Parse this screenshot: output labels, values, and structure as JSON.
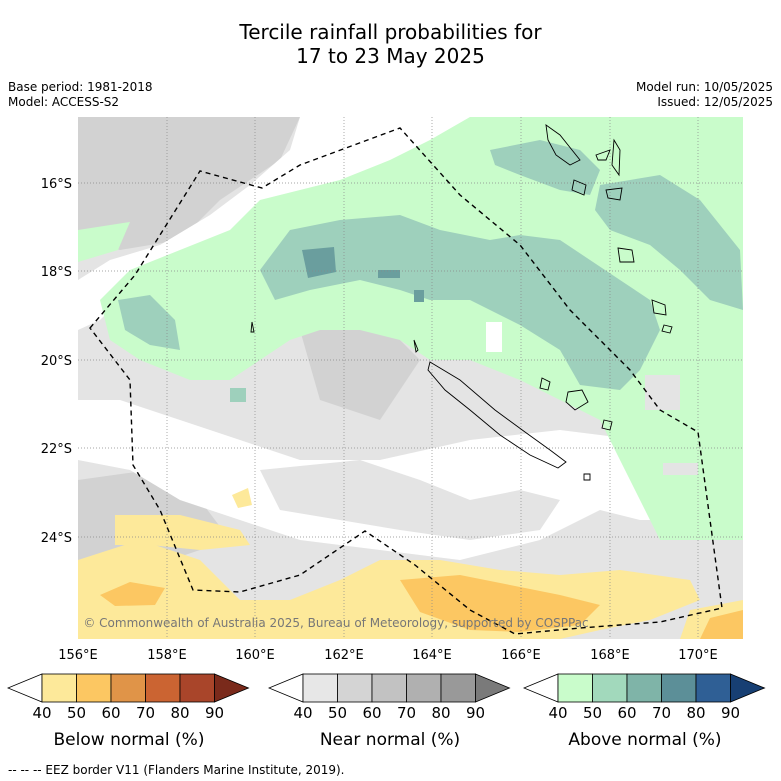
{
  "title_line1": "Tercile rainfall probabilities for",
  "title_line2": "17 to 23 May 2025",
  "base_period": "Base period: 1981-2018",
  "model": "Model: ACCESS-S2",
  "model_run": "Model run: 10/05/2025",
  "issued": "Issued: 12/05/2025",
  "copyright": "© Commonwealth of Australia 2025, Bureau of Meteorology, supported by COSPPac",
  "lon_labels": [
    "156°E",
    "158°E",
    "160°E",
    "162°E",
    "164°E",
    "166°E",
    "168°E",
    "170°E"
  ],
  "lat_labels": [
    "16°S",
    "18°S",
    "20°S",
    "22°S",
    "24°S"
  ],
  "legends": [
    {
      "label": "Below normal (%)",
      "ticks": [
        "40",
        "50",
        "60",
        "70",
        "80",
        "90"
      ],
      "colors": [
        "#ffffff",
        "#fde99a",
        "#fcc762",
        "#e09448",
        "#cb6432",
        "#a9452a",
        "#7a2a1b"
      ]
    },
    {
      "label": "Near normal (%)",
      "ticks": [
        "40",
        "50",
        "60",
        "70",
        "80",
        "90"
      ],
      "colors": [
        "#ffffff",
        "#e7e7e7",
        "#d4d4d4",
        "#c2c2c2",
        "#b0b0b0",
        "#999999",
        "#7a7a7a"
      ]
    },
    {
      "label": "Above normal (%)",
      "ticks": [
        "40",
        "50",
        "60",
        "70",
        "80",
        "90"
      ],
      "colors": [
        "#ffffff",
        "#c9fccb",
        "#a2d9bc",
        "#7fb4a8",
        "#5c8f98",
        "#2f5f95",
        "#173f73"
      ]
    }
  ],
  "footnote": "--  --  -- EEZ border V11 (Flanders Marine Institute, 2019).",
  "colors": {
    "above_50": "#c9fccb",
    "above_60": "#9ed0bc",
    "above_70": "#6a9e9e",
    "near_50": "#e4e4e4",
    "near_60": "#d2d2d2",
    "below_50": "#fde99a",
    "below_60": "#fcc762"
  }
}
